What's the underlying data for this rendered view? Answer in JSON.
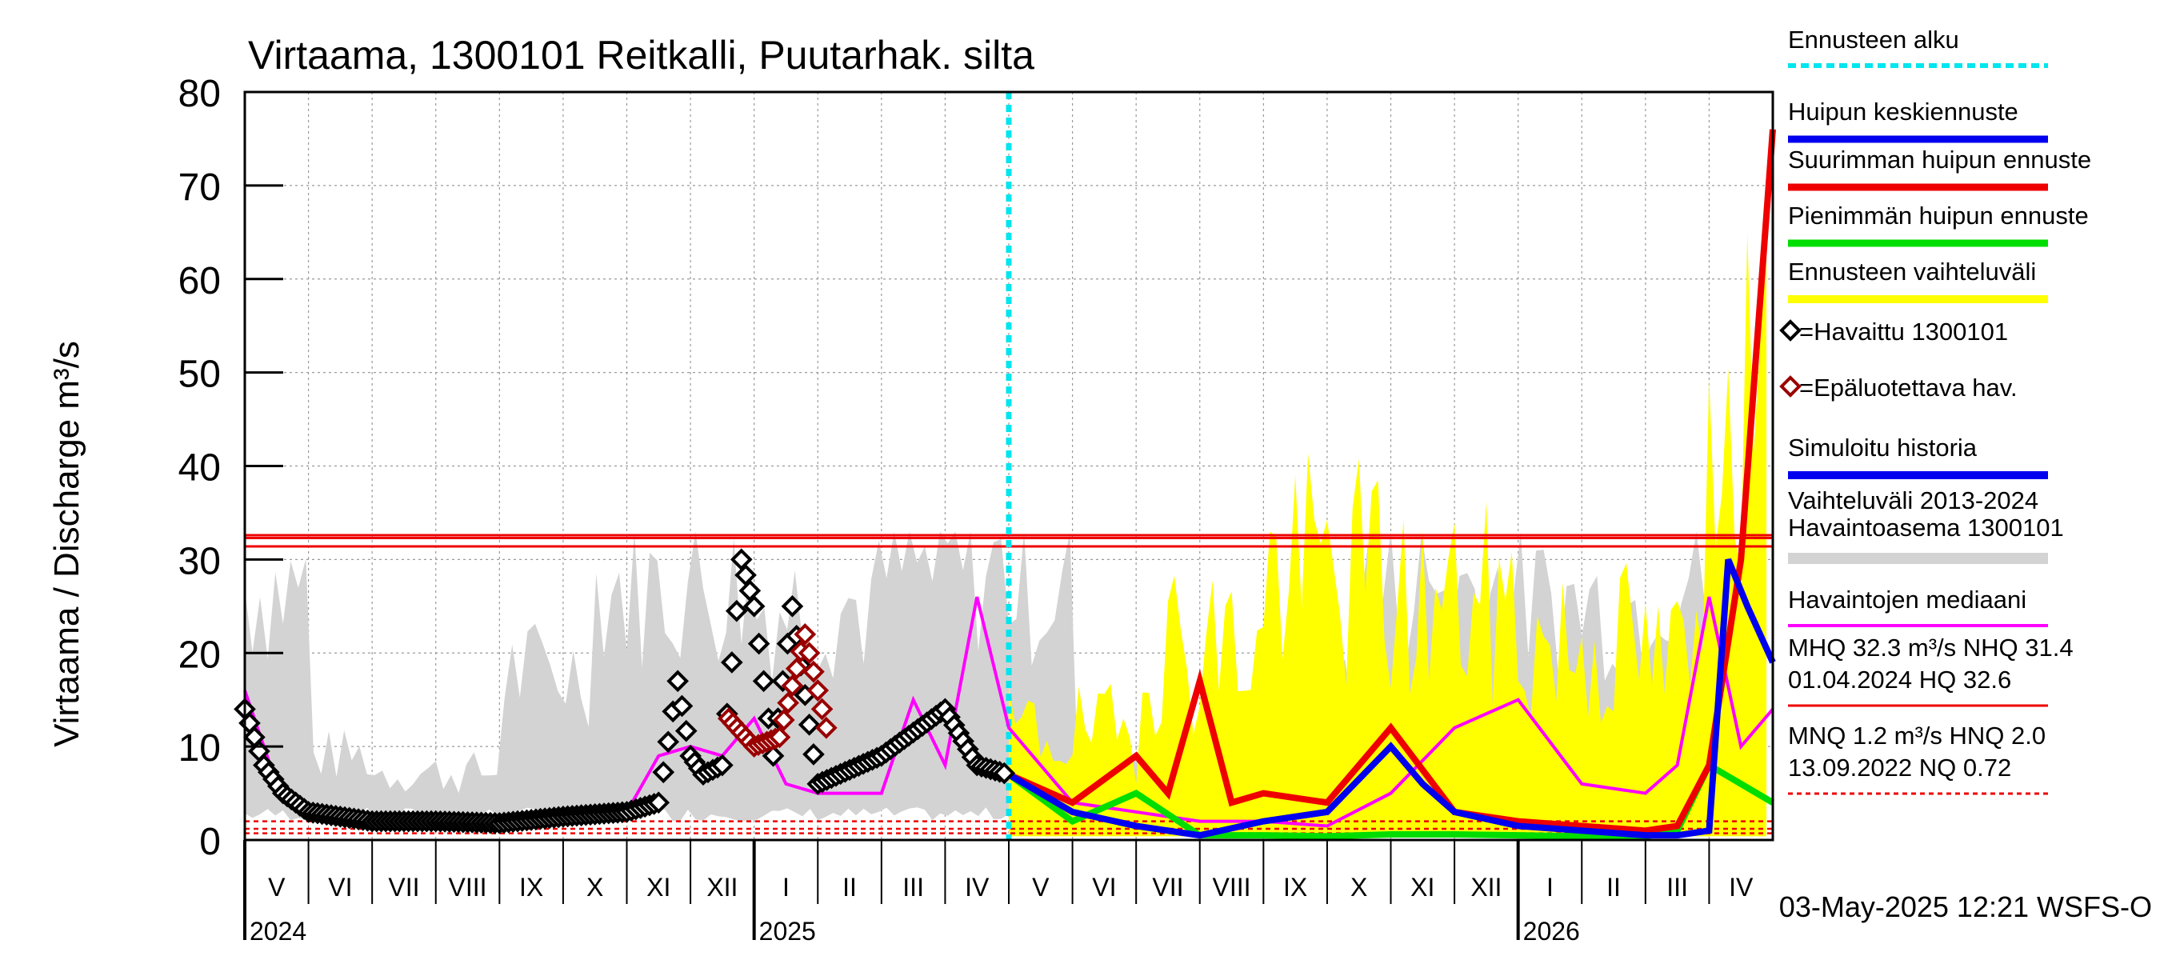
{
  "chart_data": {
    "type": "line",
    "title": "Virtaama, 1300101 Reitkalli, Puutarhak. silta",
    "ylabel": "Virtaama / Discharge    m³/s",
    "ylim": [
      0,
      80
    ],
    "yticks": [
      "0",
      "10",
      "20",
      "30",
      "40",
      "50",
      "60",
      "70",
      "80"
    ],
    "x_month_labels": [
      "V",
      "VI",
      "VII",
      "VIII",
      "IX",
      "X",
      "XI",
      "XII",
      "I",
      "II",
      "III",
      "IV",
      "V",
      "VI",
      "VII",
      "VIII",
      "IX",
      "X",
      "XI",
      "XII",
      "I",
      "II",
      "III",
      "IV"
    ],
    "x_year_labels": [
      "2024",
      "2025",
      "2026"
    ],
    "timestamp": "03-May-2025 12:21 WSFS-O",
    "colors": {
      "forecast_start": "#00e5ee",
      "mean_peak": "#0000ee",
      "max_peak": "#ee0000",
      "min_peak": "#00dd00",
      "range": "#ffff00",
      "observed": "#000000",
      "unreliable": "#990000",
      "history": "#d3d3d3",
      "median": "#ff00ff"
    },
    "reference_lines": {
      "MHQ": 32.3,
      "NHQ": 31.4,
      "HQ": 32.6,
      "MNQ": 1.2,
      "HNQ": 2.0,
      "NQ": 0.72
    },
    "forecast_start_month_index": 12,
    "legend": [
      {
        "key": "start",
        "label": "Ennusteen alku"
      },
      {
        "key": "mean",
        "label": "Huipun keskiennuste"
      },
      {
        "key": "max",
        "label": "Suurimman huipun ennuste"
      },
      {
        "key": "min",
        "label": "Pienimmän huipun ennuste"
      },
      {
        "key": "range",
        "label": "Ennusteen vaihteluväli"
      },
      {
        "key": "obs",
        "label": "=Havaittu 1300101"
      },
      {
        "key": "unrel",
        "label": "=Epäluotettava hav."
      },
      {
        "key": "sim",
        "label": "Simuloitu historia"
      },
      {
        "key": "hist1",
        "label": "Vaihteluväli 2013-2024"
      },
      {
        "key": "hist2",
        "label": " Havaintoasema 1300101"
      },
      {
        "key": "median",
        "label": "Havaintojen mediaani"
      },
      {
        "key": "hq1",
        "label": "MHQ 32.3 m³/s NHQ 31.4"
      },
      {
        "key": "hq2",
        "label": "01.04.2024 HQ 32.6"
      },
      {
        "key": "nq1",
        "label": "MNQ  1.2 m³/s HNQ  2.0"
      },
      {
        "key": "nq2",
        "label": "13.09.2022 NQ 0.72"
      }
    ],
    "series": [
      {
        "name": "Havaittu 1300101",
        "month_index": [
          0,
          0.3,
          0.6,
          1,
          1.5,
          2,
          3,
          4,
          5,
          6,
          6.5,
          6.8,
          7,
          7.2,
          7.5,
          7.8,
          8,
          8.3,
          8.6,
          9,
          10,
          11,
          11.5,
          12
        ],
        "values": [
          14,
          8,
          5,
          3,
          2.5,
          2,
          2,
          1.8,
          2.5,
          3,
          4,
          17,
          9,
          7,
          8,
          30,
          25,
          9,
          25,
          6,
          9,
          14,
          8,
          7
        ]
      },
      {
        "name": "Epäluotettava hav.",
        "month_index": [
          7.6,
          8,
          8.4,
          8.8,
          9.2
        ],
        "values": [
          13,
          10,
          11,
          22,
          10
        ]
      },
      {
        "name": "Havaintojen mediaani",
        "month_index": [
          0,
          0.5,
          1,
          2,
          3,
          4,
          5,
          6,
          6.5,
          7,
          7.5,
          8,
          8.5,
          9,
          10,
          10.5,
          11,
          11.5,
          12,
          13,
          14,
          15,
          16,
          17,
          18,
          19,
          20,
          21,
          22,
          22.5,
          23,
          23.5,
          24
        ],
        "values": [
          16,
          6,
          3,
          2,
          2,
          1.5,
          2,
          3,
          9,
          10,
          9,
          13,
          6,
          5,
          5,
          15,
          8,
          26,
          12,
          4,
          3,
          2,
          2,
          1.5,
          5,
          12,
          15,
          6,
          5,
          8,
          26,
          10,
          14
        ]
      },
      {
        "name": "Huipun keskiennuste",
        "month_index": [
          12,
          13,
          14,
          15,
          16,
          17,
          18,
          18.5,
          19,
          20,
          21,
          22,
          22.5,
          23,
          23.3,
          23.6,
          24
        ],
        "values": [
          7,
          3,
          1.5,
          0.5,
          2,
          3,
          10,
          6,
          3,
          1.5,
          1,
          0.5,
          0.5,
          1,
          30,
          25,
          19
        ]
      },
      {
        "name": "Suurimman huipun ennuste",
        "month_index": [
          12,
          13,
          14,
          14.5,
          15,
          15.5,
          16,
          17,
          18,
          19,
          20,
          21,
          22,
          22.5,
          23,
          23.5,
          24
        ],
        "values": [
          7,
          4,
          9,
          5,
          17,
          4,
          5,
          4,
          12,
          3,
          2,
          1.5,
          1,
          1.5,
          8,
          30,
          76
        ]
      },
      {
        "name": "Pienimmän huipun ennuste",
        "month_index": [
          12,
          13,
          14,
          15,
          16,
          17,
          18,
          19,
          20,
          21,
          22,
          22.5,
          23,
          23.5,
          24
        ],
        "values": [
          7,
          2,
          5,
          0.5,
          0.5,
          0.4,
          0.6,
          0.6,
          0.5,
          0.4,
          0.4,
          1,
          8,
          6,
          4
        ]
      }
    ]
  }
}
